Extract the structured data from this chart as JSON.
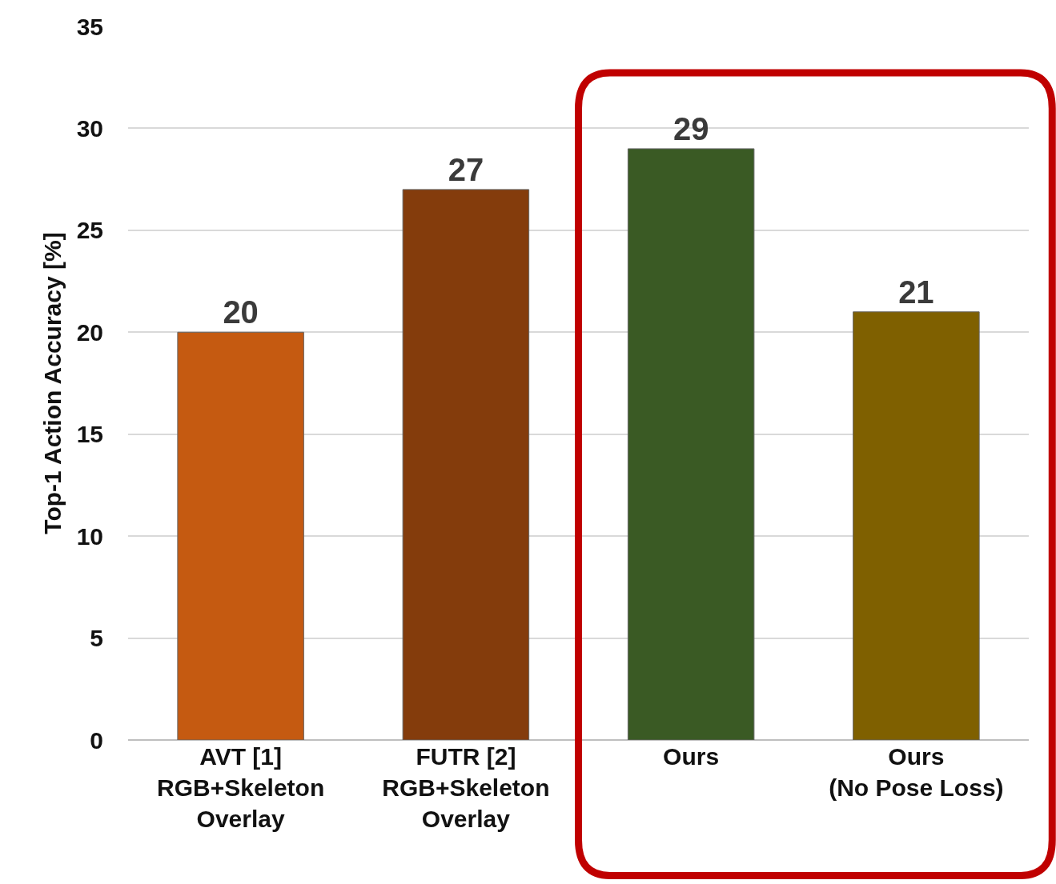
{
  "chart_data": {
    "type": "bar",
    "ylabel": "Top-1 Action Accuracy [%]",
    "categories": [
      "AVT [1]\nRGB+Skeleton\nOverlay",
      "FUTR [2]\nRGB+Skeleton\nOverlay",
      "Ours",
      "Ours\n(No Pose Loss)"
    ],
    "values": [
      20,
      27,
      29,
      21
    ],
    "colors": [
      "#c55a11",
      "#843c0c",
      "#3a5a24",
      "#7f6000"
    ],
    "ylim": [
      0,
      35
    ],
    "yticks": [
      0,
      5,
      10,
      15,
      20,
      25,
      30,
      35
    ],
    "grid": "y",
    "data_labels": true
  }
}
